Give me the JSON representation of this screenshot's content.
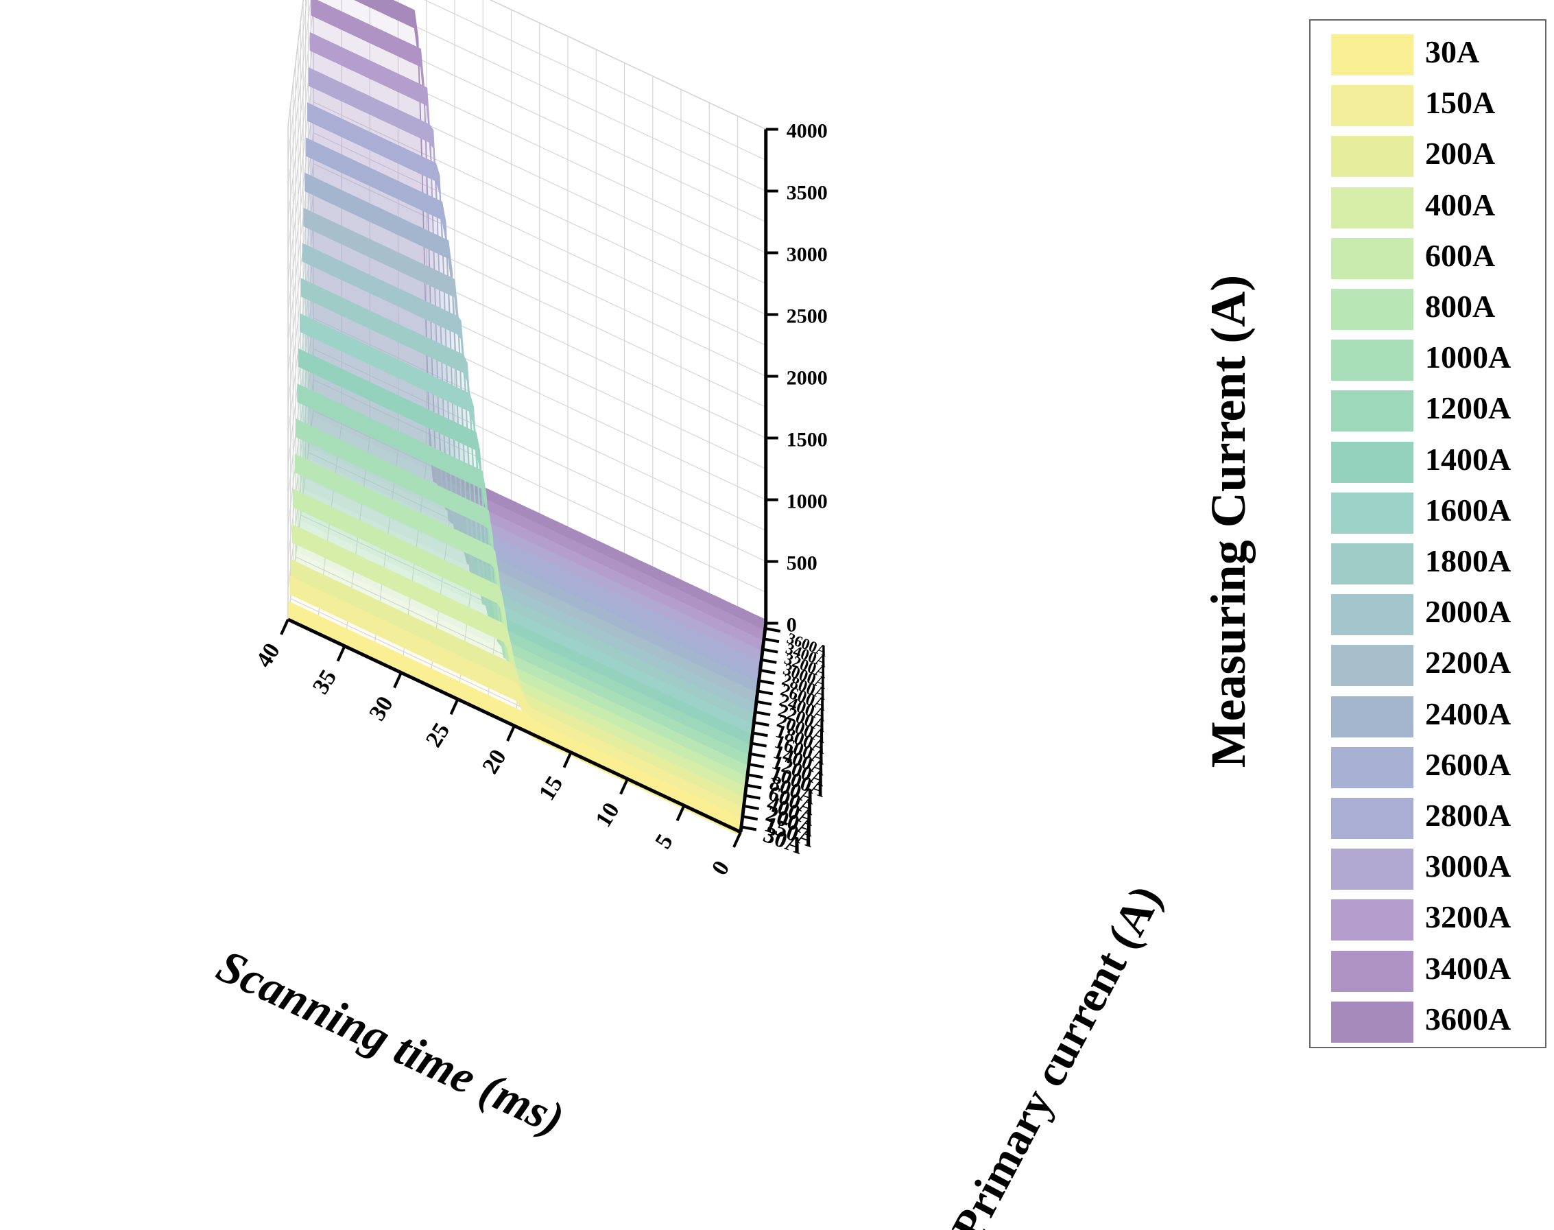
{
  "chart_data": {
    "type": "line",
    "title": "",
    "xlabel": "Scanning time (ms)",
    "ylabel": "Primary current (A)",
    "zlabel": "Measuring Current (A)",
    "x_ticks": [
      "0",
      "5",
      "10",
      "15",
      "20",
      "25",
      "30",
      "35",
      "40"
    ],
    "y_ticks": [
      "30A",
      "150A",
      "200A",
      "400A",
      "600A",
      "800A",
      "1000A",
      "1200A",
      "1400A",
      "1600A",
      "1800A",
      "2000A",
      "2200A",
      "2400A",
      "2600A",
      "2800A",
      "3000A",
      "3200A",
      "3400A",
      "3600A"
    ],
    "z_ticks": [
      "0",
      "500",
      "1000",
      "1500",
      "2000",
      "2500",
      "3000",
      "3500",
      "4000"
    ],
    "xlim": [
      0,
      40
    ],
    "zlim": [
      0,
      4000
    ],
    "grid": true,
    "legend_position": "right",
    "series": [
      {
        "name": "30A",
        "primary": 30,
        "color": "#FBEF94",
        "step_start_ms": 18.0,
        "step_end_ms": 19.5
      },
      {
        "name": "150A",
        "primary": 150,
        "color": "#F3EE9A",
        "step_start_ms": 18.6,
        "step_end_ms": 20.1
      },
      {
        "name": "200A",
        "primary": 200,
        "color": "#E6EE9E",
        "step_start_ms": 19.2,
        "step_end_ms": 20.7
      },
      {
        "name": "400A",
        "primary": 400,
        "color": "#D6EEA8",
        "step_start_ms": 19.8,
        "step_end_ms": 21.3
      },
      {
        "name": "600A",
        "primary": 600,
        "color": "#C8EBAE",
        "step_start_ms": 20.4,
        "step_end_ms": 21.9
      },
      {
        "name": "800A",
        "primary": 800,
        "color": "#B8E6B4",
        "step_start_ms": 21.0,
        "step_end_ms": 22.5
      },
      {
        "name": "1000A",
        "primary": 1000,
        "color": "#A8DEB8",
        "step_start_ms": 21.6,
        "step_end_ms": 23.1
      },
      {
        "name": "1200A",
        "primary": 1200,
        "color": "#9DD8BA",
        "step_start_ms": 22.2,
        "step_end_ms": 23.7
      },
      {
        "name": "1400A",
        "primary": 1400,
        "color": "#94D2BE",
        "step_start_ms": 22.8,
        "step_end_ms": 24.3
      },
      {
        "name": "1600A",
        "primary": 1600,
        "color": "#9CD2C8",
        "step_start_ms": 23.4,
        "step_end_ms": 24.9
      },
      {
        "name": "1800A",
        "primary": 1800,
        "color": "#A0CCC8",
        "step_start_ms": 24.0,
        "step_end_ms": 25.5
      },
      {
        "name": "2000A",
        "primary": 2000,
        "color": "#A2C6CC",
        "step_start_ms": 24.6,
        "step_end_ms": 26.1
      },
      {
        "name": "2200A",
        "primary": 2200,
        "color": "#A6BFCB",
        "step_start_ms": 25.2,
        "step_end_ms": 26.7
      },
      {
        "name": "2400A",
        "primary": 2400,
        "color": "#A4B6CD",
        "step_start_ms": 25.8,
        "step_end_ms": 27.3
      },
      {
        "name": "2600A",
        "primary": 2600,
        "color": "#A6B0D2",
        "step_start_ms": 26.4,
        "step_end_ms": 27.9
      },
      {
        "name": "2800A",
        "primary": 2800,
        "color": "#ABAED4",
        "step_start_ms": 27.0,
        "step_end_ms": 28.5
      },
      {
        "name": "3000A",
        "primary": 3000,
        "color": "#B1A9D2",
        "step_start_ms": 27.6,
        "step_end_ms": 29.1
      },
      {
        "name": "3200A",
        "primary": 3200,
        "color": "#B49ECD",
        "step_start_ms": 28.2,
        "step_end_ms": 29.7
      },
      {
        "name": "3400A",
        "primary": 3400,
        "color": "#AE93C4",
        "step_start_ms": 28.8,
        "step_end_ms": 30.3
      },
      {
        "name": "3600A",
        "primary": 3600,
        "color": "#A68ABB",
        "step_start_ms": 29.4,
        "step_end_ms": 30.9
      }
    ]
  }
}
